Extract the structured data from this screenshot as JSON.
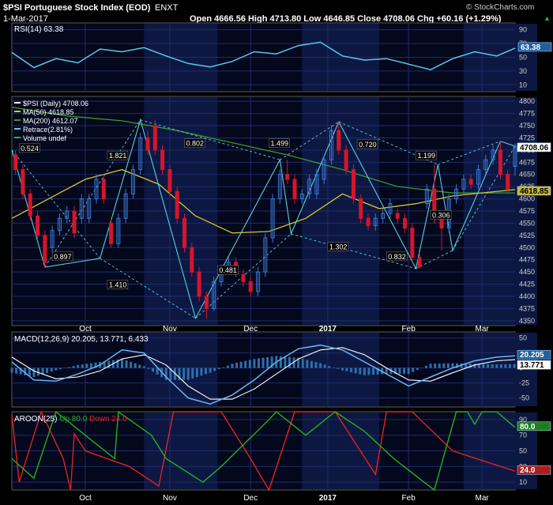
{
  "header": {
    "symbol_title": "$PSI Portuguese Stock Index (EOD)",
    "exchange": "ENXT",
    "date": "1-Mar-2017",
    "quote": "Open 4666.56  High 4713.80  Low 4646.85  Close 4708.06  Chg +60.16 (+1.29%)",
    "chg_arrow": "▲",
    "watermark": "© StockCharts.com"
  },
  "colors": {
    "background": "#000000",
    "panel": "#04081c",
    "band": "#0d1842",
    "grid": "#1e2b6e",
    "price_line": "#5bc8ec",
    "ma50": "#d4c431",
    "ma200": "#3a9a2f",
    "retrace": "#5ad0dc",
    "up_candle": "#3a78d8",
    "down_candle": "#d8142b",
    "macd": "#6cb6f0",
    "signal": "#ffffff",
    "histogram": "#2e6fae",
    "aroon_up": "#22b022",
    "aroon_down": "#e02222"
  },
  "chart_data": [
    {
      "type": "line",
      "title": "RSI(14) 63.38",
      "yticks": [
        10,
        30,
        50,
        70,
        90
      ],
      "ylim": [
        0,
        100
      ],
      "last_label": "63.38",
      "x": [
        0,
        6,
        12,
        18,
        24,
        30,
        36,
        42,
        48,
        54,
        60,
        66,
        72,
        78,
        84,
        90,
        96,
        102,
        108,
        114,
        120,
        126,
        132,
        137
      ],
      "values": [
        57,
        35,
        48,
        42,
        62,
        58,
        64,
        52,
        41,
        36,
        44,
        58,
        55,
        67,
        72,
        52,
        46,
        48,
        40,
        32,
        48,
        58,
        52,
        63.38
      ]
    },
    {
      "type": "line",
      "title": "$PSI (Daily) 4708.06",
      "legend": [
        "$PSI (Daily) 4708.06",
        "MA(50) 4618.85",
        "MA(200) 4612.07",
        "Retrace(2.81%)",
        "Volume undef"
      ],
      "ylim": [
        4340,
        4810
      ],
      "yticks": [
        4350,
        4375,
        4400,
        4425,
        4450,
        4475,
        4500,
        4525,
        4550,
        4575,
        4600,
        4625,
        4650,
        4675,
        4700,
        4725,
        4750,
        4775,
        4800
      ],
      "xticks": [
        {
          "label": "Oct",
          "x": 20
        },
        {
          "label": "Nov",
          "x": 43
        },
        {
          "label": "Dec",
          "x": 65
        },
        {
          "label": "2017",
          "x": 86
        },
        {
          "label": "Feb",
          "x": 108
        },
        {
          "label": "Mar",
          "x": 128
        }
      ],
      "close_label": "4708.06",
      "ma_label": "4618.85",
      "zigzag": [
        {
          "x": 0,
          "y": 4700
        },
        {
          "x": 9,
          "y": 4460
        },
        {
          "x": 24,
          "y": 4478
        },
        {
          "x": 35,
          "y": 4762
        },
        {
          "x": 50,
          "y": 4355
        },
        {
          "x": 73,
          "y": 4680
        },
        {
          "x": 76,
          "y": 4528
        },
        {
          "x": 89,
          "y": 4758
        },
        {
          "x": 110,
          "y": 4457
        },
        {
          "x": 116,
          "y": 4670
        },
        {
          "x": 120,
          "y": 4494
        },
        {
          "x": 133,
          "y": 4718
        },
        {
          "x": 137,
          "y": 4708
        }
      ],
      "retrace_labels": [
        {
          "text": "0.524",
          "x": 2,
          "y": 4700
        },
        {
          "text": "0.897",
          "x": 11,
          "y": 4478
        },
        {
          "text": "1.821",
          "x": 26,
          "y": 4685
        },
        {
          "text": "1.410",
          "x": 26,
          "y": 4420
        },
        {
          "text": "0.802",
          "x": 47,
          "y": 4710
        },
        {
          "text": "0.481",
          "x": 56,
          "y": 4450
        },
        {
          "text": "1.499",
          "x": 70,
          "y": 4710
        },
        {
          "text": "1.302",
          "x": 86,
          "y": 4498
        },
        {
          "text": "0.720",
          "x": 94,
          "y": 4708
        },
        {
          "text": "0.832",
          "x": 102,
          "y": 4478
        },
        {
          "text": "1.199",
          "x": 110,
          "y": 4685
        },
        {
          "text": "0.306",
          "x": 114,
          "y": 4563
        }
      ],
      "candle_x": [
        1,
        3,
        5,
        7,
        9,
        11,
        13,
        15,
        17,
        19,
        21,
        23,
        25,
        27,
        29,
        31,
        33,
        35,
        37,
        39,
        41,
        43,
        45,
        47,
        49,
        51,
        53,
        55,
        57,
        59,
        61,
        63,
        65,
        67,
        69,
        71,
        73,
        75,
        77,
        79,
        81,
        83,
        85,
        87,
        89,
        91,
        93,
        95,
        97,
        99,
        101,
        103,
        105,
        107,
        109,
        111,
        113,
        115,
        117,
        119,
        121,
        123,
        125,
        127,
        129,
        131,
        133,
        135,
        137
      ],
      "candle_open": [
        4690,
        4660,
        4610,
        4565,
        4525,
        4500,
        4535,
        4560,
        4575,
        4560,
        4560,
        4600,
        4640,
        4550,
        4508,
        4560,
        4610,
        4660,
        4725,
        4750,
        4700,
        4660,
        4615,
        4560,
        4500,
        4450,
        4400,
        4375,
        4430,
        4455,
        4470,
        4445,
        4430,
        4410,
        4450,
        4520,
        4600,
        4650,
        4640,
        4600,
        4610,
        4610,
        4640,
        4680,
        4740,
        4700,
        4660,
        4600,
        4560,
        4545,
        4560,
        4570,
        4570,
        4560,
        4540,
        4480,
        4590,
        4620,
        4560,
        4540,
        4600,
        4620,
        4640,
        4630,
        4660,
        4680,
        4700,
        4650,
        4666.56
      ],
      "candle_close": [
        4660,
        4610,
        4565,
        4525,
        4470,
        4535,
        4560,
        4575,
        4530,
        4600,
        4600,
        4640,
        4600,
        4508,
        4560,
        4610,
        4660,
        4725,
        4700,
        4700,
        4660,
        4615,
        4560,
        4500,
        4450,
        4400,
        4375,
        4430,
        4455,
        4470,
        4445,
        4430,
        4410,
        4450,
        4520,
        4600,
        4650,
        4640,
        4600,
        4610,
        4640,
        4650,
        4680,
        4740,
        4700,
        4660,
        4600,
        4560,
        4545,
        4560,
        4570,
        4590,
        4560,
        4540,
        4480,
        4460,
        4620,
        4560,
        4540,
        4600,
        4620,
        4640,
        4630,
        4660,
        4680,
        4700,
        4650,
        4620,
        4708.06
      ],
      "candle_high": [
        4700,
        4670,
        4620,
        4575,
        4535,
        4545,
        4570,
        4585,
        4585,
        4610,
        4610,
        4650,
        4650,
        4560,
        4570,
        4620,
        4670,
        4735,
        4740,
        4762,
        4710,
        4670,
        4625,
        4570,
        4510,
        4460,
        4410,
        4440,
        4465,
        4480,
        4480,
        4455,
        4440,
        4460,
        4530,
        4610,
        4660,
        4680,
        4650,
        4620,
        4650,
        4660,
        4690,
        4750,
        4758,
        4710,
        4670,
        4610,
        4570,
        4570,
        4580,
        4600,
        4580,
        4570,
        4550,
        4490,
        4630,
        4670,
        4570,
        4610,
        4630,
        4650,
        4650,
        4670,
        4690,
        4710,
        4718,
        4660,
        4713.8
      ],
      "candle_low": [
        4650,
        4600,
        4555,
        4515,
        4460,
        4490,
        4525,
        4550,
        4520,
        4550,
        4550,
        4590,
        4590,
        4500,
        4500,
        4550,
        4600,
        4650,
        4690,
        4690,
        4650,
        4605,
        4550,
        4490,
        4440,
        4390,
        4355,
        4370,
        4420,
        4445,
        4440,
        4420,
        4400,
        4400,
        4440,
        4510,
        4590,
        4630,
        4590,
        4590,
        4600,
        4600,
        4630,
        4670,
        4690,
        4650,
        4590,
        4550,
        4535,
        4535,
        4550,
        4560,
        4550,
        4530,
        4470,
        4457,
        4580,
        4550,
        4494,
        4530,
        4590,
        4610,
        4620,
        4620,
        4650,
        4670,
        4640,
        4610,
        4646.85
      ]
    },
    {
      "type": "line",
      "title": "MACD(12,26,9) 20.205, 13.771, 6.433",
      "ylim": [
        -65,
        60
      ],
      "yticks": [
        -50,
        -25,
        0,
        25,
        50
      ],
      "last_labels": [
        "20.205",
        "13.771"
      ],
      "x": [
        0,
        6,
        12,
        18,
        24,
        30,
        36,
        42,
        48,
        54,
        60,
        66,
        72,
        78,
        84,
        90,
        96,
        102,
        108,
        114,
        120,
        126,
        132,
        137
      ],
      "macd": [
        10,
        -20,
        -22,
        -10,
        5,
        30,
        25,
        -15,
        -50,
        -60,
        -45,
        -20,
        10,
        32,
        38,
        30,
        10,
        -10,
        -30,
        -15,
        0,
        12,
        18,
        20.205
      ],
      "signal": [
        18,
        -5,
        -18,
        -15,
        -5,
        15,
        22,
        5,
        -30,
        -52,
        -52,
        -35,
        -10,
        15,
        30,
        34,
        22,
        0,
        -20,
        -22,
        -8,
        5,
        12,
        13.771
      ]
    },
    {
      "type": "line",
      "title": "AROON(25)",
      "labels": [
        "Up 80.0",
        "Down 24.0"
      ],
      "ylim": [
        0,
        100
      ],
      "yticks": [
        10,
        30,
        50,
        70,
        90
      ],
      "last_labels": [
        "80.0",
        "24.0"
      ],
      "up_points": [
        [
          0,
          40
        ],
        [
          6,
          15
        ],
        [
          12,
          100
        ],
        [
          28,
          40
        ],
        [
          29,
          100
        ],
        [
          38,
          70
        ],
        [
          42,
          40
        ],
        [
          52,
          10
        ],
        [
          57,
          30
        ],
        [
          70,
          90
        ],
        [
          72,
          100
        ],
        [
          80,
          70
        ],
        [
          88,
          100
        ],
        [
          96,
          75
        ],
        [
          104,
          40
        ],
        [
          115,
          0
        ],
        [
          121,
          100
        ],
        [
          124,
          100
        ],
        [
          126,
          84
        ],
        [
          128,
          100
        ],
        [
          132,
          100
        ],
        [
          137,
          80
        ]
      ],
      "down_points": [
        [
          0,
          96
        ],
        [
          2,
          10
        ],
        [
          8,
          100
        ],
        [
          14,
          40
        ],
        [
          16,
          0
        ],
        [
          17,
          72
        ],
        [
          20,
          50
        ],
        [
          32,
          30
        ],
        [
          40,
          5
        ],
        [
          44,
          100
        ],
        [
          50,
          100
        ],
        [
          57,
          100
        ],
        [
          65,
          40
        ],
        [
          70,
          0
        ],
        [
          77,
          100
        ],
        [
          88,
          100
        ],
        [
          99,
          20
        ],
        [
          102,
          100
        ],
        [
          109,
          100
        ],
        [
          120,
          50
        ],
        [
          137,
          24
        ]
      ]
    }
  ]
}
